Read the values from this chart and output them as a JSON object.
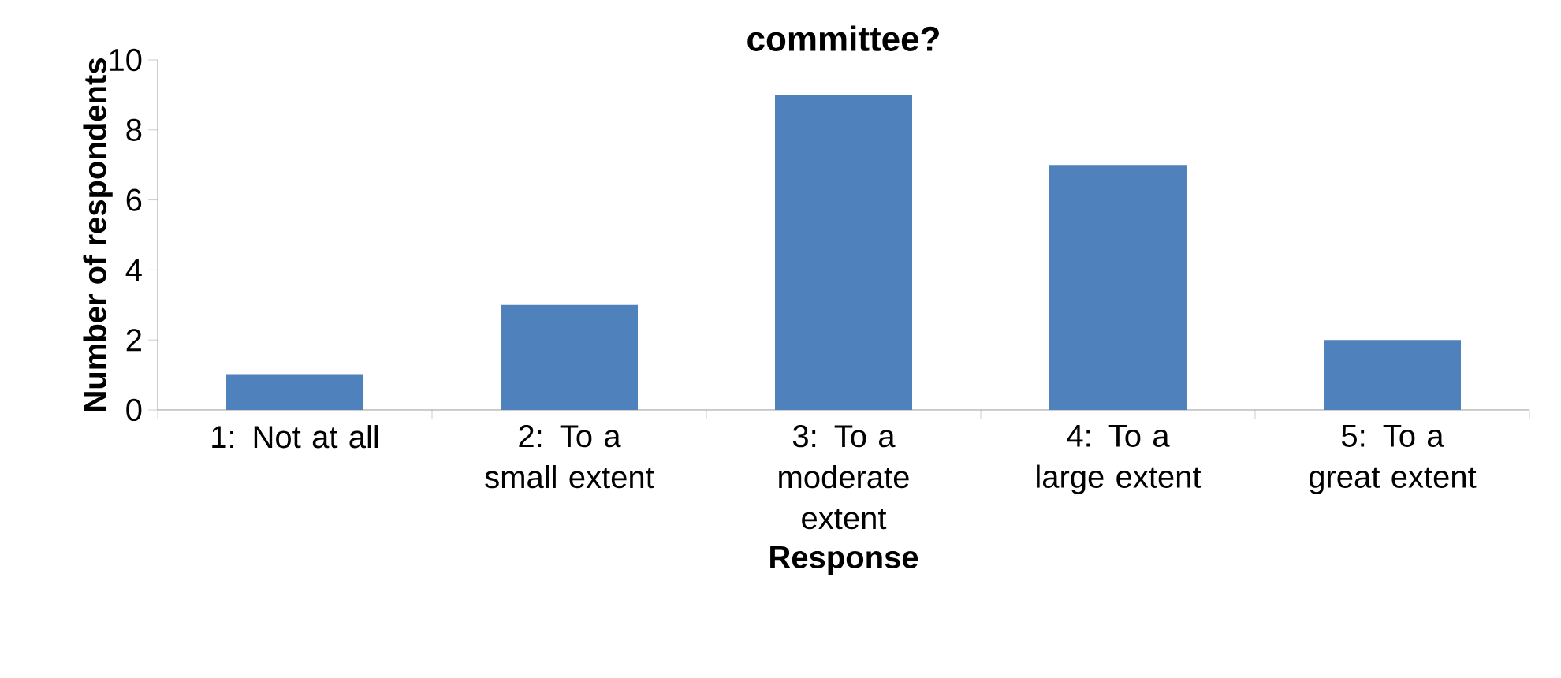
{
  "chart_data": {
    "type": "bar",
    "title": "committee?",
    "categories": [
      "1: Not at all",
      "2: To a small extent",
      "3: To a moderate extent",
      "4: To a large extent",
      "5: To a great extent"
    ],
    "values": [
      1,
      3,
      9,
      7,
      2
    ],
    "color": "#4f81bd",
    "xlabel": "Response",
    "ylabel": "Number of respondents",
    "ylim": [
      0,
      10
    ],
    "yticks": [
      0,
      2,
      4,
      6,
      8,
      10
    ],
    "grid": false
  }
}
